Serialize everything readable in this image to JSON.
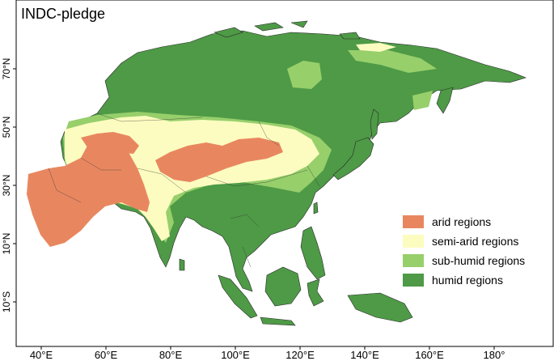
{
  "map": {
    "title": "INDC-pledge",
    "colors": {
      "arid": "#e8875f",
      "semi_arid": "#fcfcc0",
      "sub_humid": "#97cf6b",
      "humid": "#4e9a46",
      "border": "#2a2a2a",
      "frame": "#000000",
      "background": "#ffffff"
    },
    "lon_ticks": [
      {
        "value": 40,
        "label": "40°E"
      },
      {
        "value": 60,
        "label": "60°E"
      },
      {
        "value": 80,
        "label": "80°E"
      },
      {
        "value": 100,
        "label": "100°E"
      },
      {
        "value": 120,
        "label": "120°E"
      },
      {
        "value": 140,
        "label": "140°E"
      },
      {
        "value": 160,
        "label": "160°E"
      },
      {
        "value": 180,
        "label": "180°"
      }
    ],
    "lat_ticks": [
      {
        "value": 70,
        "label": "70°N"
      },
      {
        "value": 50,
        "label": "50°N"
      },
      {
        "value": 30,
        "label": "30°N"
      },
      {
        "value": 10,
        "label": "10°N"
      },
      {
        "value": -10,
        "label": "10°S"
      }
    ],
    "legend": [
      {
        "key": "arid",
        "label": "arid regions"
      },
      {
        "key": "semi_arid",
        "label": "semi-arid regions"
      },
      {
        "key": "sub_humid",
        "label": "sub-humid regions"
      },
      {
        "key": "humid",
        "label": "humid regions"
      }
    ]
  }
}
